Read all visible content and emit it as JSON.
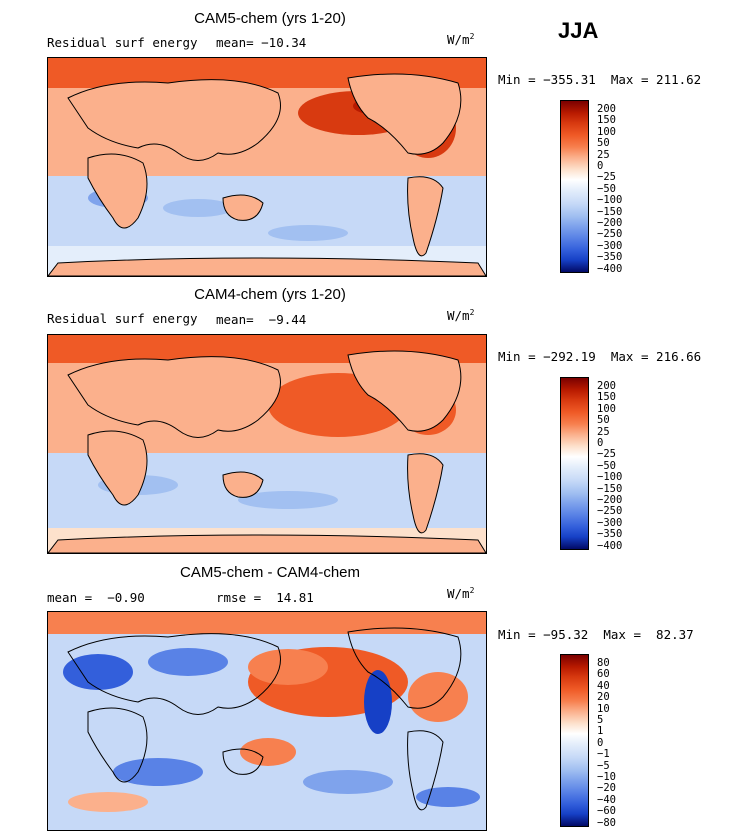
{
  "season": "JJA",
  "units_base": "W/m",
  "units_exp": "2",
  "panel1": {
    "title": "CAM5-chem (yrs 1-20)",
    "field": "Residual surf energy",
    "mean_text": "mean= −10.34",
    "minmax": "Min = −355.31  Max = 211.62",
    "levels": [
      "200",
      "150",
      "100",
      "50",
      "25",
      "0",
      "−25",
      "−50",
      "−100",
      "−150",
      "−200",
      "−250",
      "−300",
      "−350",
      "−400"
    ]
  },
  "panel2": {
    "title": "CAM4-chem (yrs 1-20)",
    "field": "Residual surf energy",
    "mean_text": "mean=  −9.44",
    "minmax": "Min = −292.19  Max = 216.66",
    "levels": [
      "200",
      "150",
      "100",
      "50",
      "25",
      "0",
      "−25",
      "−50",
      "−100",
      "−150",
      "−200",
      "−250",
      "−300",
      "−350",
      "−400"
    ]
  },
  "panel3": {
    "title": "CAM5-chem - CAM4-chem",
    "mean_text": "mean =  −0.90",
    "rmse_text": "rmse =  14.81",
    "minmax": "Min = −95.32  Max =  82.37",
    "levels": [
      "80",
      "60",
      "40",
      "20",
      "10",
      "5",
      "1",
      "0",
      "−1",
      "−5",
      "−10",
      "−20",
      "−40",
      "−60",
      "−80"
    ]
  },
  "colors": {
    "scale": [
      "#7a0000",
      "#b81a00",
      "#d83a10",
      "#ef5a26",
      "#f7804f",
      "#fbb08c",
      "#fde1cc",
      "#e4eefb",
      "#c6d9f7",
      "#a2c0f1",
      "#7fa3ec",
      "#5982e6",
      "#335fdb",
      "#1640c6",
      "#0a1f99",
      "#020a66"
    ]
  }
}
